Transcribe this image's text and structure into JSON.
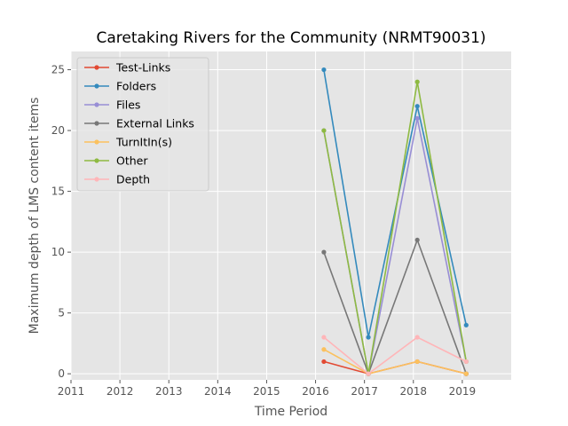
{
  "chart_data": {
    "type": "line",
    "title": "Caretaking Rivers for the Community (NRMT90031)",
    "xlabel": "Time Period",
    "ylabel": "Maximum depth of LMS content items",
    "xlim": [
      2011,
      2020
    ],
    "ylim": [
      -0.5,
      26.5
    ],
    "xticks": [
      2011,
      2012,
      2013,
      2014,
      2015,
      2016,
      2017,
      2018,
      2019
    ],
    "yticks": [
      0,
      5,
      10,
      15,
      20,
      25
    ],
    "grid": true,
    "legend_position": "top-left",
    "x": [
      2016.17,
      2017.08,
      2018.08,
      2019.08
    ],
    "series": [
      {
        "name": "Test-Links",
        "color": "#E24A33",
        "values": [
          1,
          0,
          1,
          0
        ]
      },
      {
        "name": "Folders",
        "color": "#348ABD",
        "values": [
          25,
          3,
          22,
          4
        ]
      },
      {
        "name": "Files",
        "color": "#988ED5",
        "values": [
          20,
          0,
          21,
          1
        ]
      },
      {
        "name": "External Links",
        "color": "#777777",
        "values": [
          10,
          0,
          11,
          0
        ]
      },
      {
        "name": "TurnItIn(s)",
        "color": "#FBC15E",
        "values": [
          2,
          0,
          1,
          0
        ]
      },
      {
        "name": "Other",
        "color": "#8EBA42",
        "values": [
          20,
          0,
          24,
          1
        ]
      },
      {
        "name": "Depth",
        "color": "#FFB5B8",
        "values": [
          3,
          0,
          3,
          1
        ]
      }
    ]
  }
}
